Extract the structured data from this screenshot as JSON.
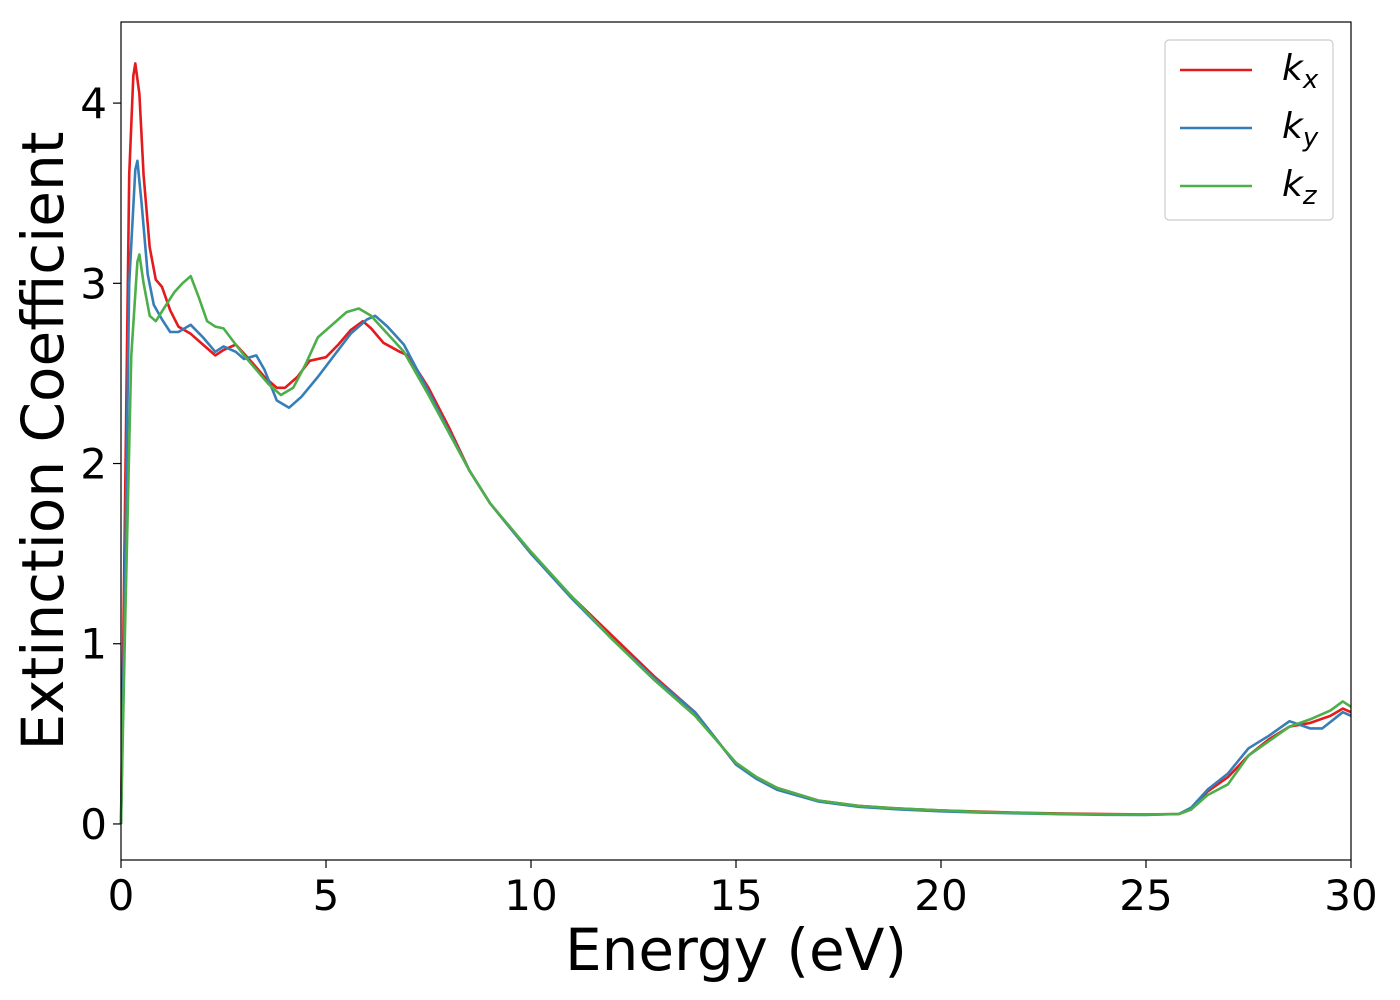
{
  "chart_data": {
    "type": "line",
    "xlabel": "Energy (eV)",
    "ylabel": "Extinction Coefficient",
    "xlim": [
      0,
      30
    ],
    "ylim": [
      -0.2,
      4.45
    ],
    "xticks": [
      0,
      5,
      10,
      15,
      20,
      25,
      30
    ],
    "xtick_labels": [
      "0",
      "5",
      "10",
      "15",
      "20",
      "25",
      "30"
    ],
    "yticks": [
      0,
      1,
      2,
      3,
      4
    ],
    "ytick_labels": [
      "0",
      "1",
      "2",
      "3",
      "4"
    ],
    "grid": false,
    "legend_position": "top-right",
    "series": [
      {
        "name": "k_x",
        "label_base": "k",
        "label_sub": "x",
        "color": "#e41a1c",
        "points": [
          [
            0,
            0.0
          ],
          [
            0.1,
            1.8
          ],
          [
            0.2,
            3.6
          ],
          [
            0.3,
            4.15
          ],
          [
            0.35,
            4.22
          ],
          [
            0.45,
            4.05
          ],
          [
            0.55,
            3.6
          ],
          [
            0.7,
            3.2
          ],
          [
            0.85,
            3.02
          ],
          [
            1.0,
            2.98
          ],
          [
            1.2,
            2.85
          ],
          [
            1.4,
            2.76
          ],
          [
            1.7,
            2.72
          ],
          [
            2.0,
            2.66
          ],
          [
            2.3,
            2.6
          ],
          [
            2.5,
            2.63
          ],
          [
            2.8,
            2.66
          ],
          [
            3.2,
            2.56
          ],
          [
            3.5,
            2.48
          ],
          [
            3.8,
            2.42
          ],
          [
            4.0,
            2.42
          ],
          [
            4.3,
            2.48
          ],
          [
            4.6,
            2.57
          ],
          [
            5.0,
            2.59
          ],
          [
            5.3,
            2.66
          ],
          [
            5.6,
            2.74
          ],
          [
            5.9,
            2.79
          ],
          [
            6.1,
            2.75
          ],
          [
            6.4,
            2.67
          ],
          [
            6.8,
            2.62
          ],
          [
            7.0,
            2.6
          ],
          [
            7.5,
            2.42
          ],
          [
            8.0,
            2.2
          ],
          [
            8.5,
            1.96
          ],
          [
            9.0,
            1.78
          ],
          [
            10.0,
            1.5
          ],
          [
            11.0,
            1.26
          ],
          [
            12.0,
            1.04
          ],
          [
            13.0,
            0.82
          ],
          [
            14.0,
            0.62
          ],
          [
            15.0,
            0.33
          ],
          [
            15.5,
            0.26
          ],
          [
            16.0,
            0.2
          ],
          [
            17.0,
            0.13
          ],
          [
            18.0,
            0.1
          ],
          [
            19.0,
            0.085
          ],
          [
            20.0,
            0.075
          ],
          [
            21.0,
            0.068
          ],
          [
            22.0,
            0.062
          ],
          [
            23.0,
            0.058
          ],
          [
            24.0,
            0.055
          ],
          [
            25.0,
            0.053
          ],
          [
            25.8,
            0.055
          ],
          [
            26.1,
            0.08
          ],
          [
            26.5,
            0.18
          ],
          [
            27.0,
            0.26
          ],
          [
            27.5,
            0.38
          ],
          [
            28.0,
            0.47
          ],
          [
            28.5,
            0.54
          ],
          [
            29.0,
            0.56
          ],
          [
            29.5,
            0.6
          ],
          [
            29.8,
            0.64
          ],
          [
            30.0,
            0.62
          ]
        ]
      },
      {
        "name": "k_y",
        "label_base": "k",
        "label_sub": "y",
        "color": "#377eb8",
        "points": [
          [
            0,
            0.0
          ],
          [
            0.1,
            1.4
          ],
          [
            0.2,
            3.0
          ],
          [
            0.35,
            3.63
          ],
          [
            0.4,
            3.68
          ],
          [
            0.5,
            3.45
          ],
          [
            0.65,
            3.05
          ],
          [
            0.8,
            2.88
          ],
          [
            1.0,
            2.8
          ],
          [
            1.2,
            2.73
          ],
          [
            1.4,
            2.73
          ],
          [
            1.7,
            2.77
          ],
          [
            2.0,
            2.7
          ],
          [
            2.3,
            2.62
          ],
          [
            2.5,
            2.65
          ],
          [
            2.8,
            2.62
          ],
          [
            3.0,
            2.58
          ],
          [
            3.3,
            2.6
          ],
          [
            3.5,
            2.52
          ],
          [
            3.8,
            2.35
          ],
          [
            4.1,
            2.31
          ],
          [
            4.4,
            2.37
          ],
          [
            4.8,
            2.48
          ],
          [
            5.2,
            2.6
          ],
          [
            5.6,
            2.72
          ],
          [
            6.0,
            2.8
          ],
          [
            6.2,
            2.82
          ],
          [
            6.5,
            2.76
          ],
          [
            6.9,
            2.66
          ],
          [
            7.5,
            2.4
          ],
          [
            8.0,
            2.18
          ],
          [
            8.5,
            1.96
          ],
          [
            9.0,
            1.78
          ],
          [
            10.0,
            1.5
          ],
          [
            11.0,
            1.25
          ],
          [
            12.0,
            1.02
          ],
          [
            13.0,
            0.81
          ],
          [
            14.0,
            0.62
          ],
          [
            15.0,
            0.33
          ],
          [
            15.5,
            0.25
          ],
          [
            16.0,
            0.19
          ],
          [
            17.0,
            0.125
          ],
          [
            18.0,
            0.095
          ],
          [
            19.0,
            0.08
          ],
          [
            20.0,
            0.07
          ],
          [
            21.0,
            0.063
          ],
          [
            22.0,
            0.058
          ],
          [
            23.0,
            0.054
          ],
          [
            24.0,
            0.051
          ],
          [
            25.0,
            0.05
          ],
          [
            25.8,
            0.055
          ],
          [
            26.1,
            0.09
          ],
          [
            26.5,
            0.19
          ],
          [
            27.0,
            0.28
          ],
          [
            27.5,
            0.42
          ],
          [
            28.0,
            0.49
          ],
          [
            28.5,
            0.57
          ],
          [
            29.0,
            0.53
          ],
          [
            29.3,
            0.53
          ],
          [
            29.8,
            0.62
          ],
          [
            30.0,
            0.6
          ]
        ]
      },
      {
        "name": "k_z",
        "label_base": "k",
        "label_sub": "z",
        "color": "#4daf4a",
        "points": [
          [
            0,
            0.0
          ],
          [
            0.1,
            1.1
          ],
          [
            0.25,
            2.6
          ],
          [
            0.4,
            3.12
          ],
          [
            0.45,
            3.16
          ],
          [
            0.55,
            3.0
          ],
          [
            0.7,
            2.82
          ],
          [
            0.85,
            2.79
          ],
          [
            1.1,
            2.88
          ],
          [
            1.3,
            2.95
          ],
          [
            1.5,
            3.0
          ],
          [
            1.7,
            3.04
          ],
          [
            1.9,
            2.92
          ],
          [
            2.1,
            2.79
          ],
          [
            2.3,
            2.76
          ],
          [
            2.5,
            2.75
          ],
          [
            2.8,
            2.66
          ],
          [
            3.0,
            2.6
          ],
          [
            3.3,
            2.52
          ],
          [
            3.6,
            2.44
          ],
          [
            3.9,
            2.38
          ],
          [
            4.2,
            2.42
          ],
          [
            4.5,
            2.55
          ],
          [
            4.8,
            2.7
          ],
          [
            5.2,
            2.78
          ],
          [
            5.5,
            2.84
          ],
          [
            5.8,
            2.86
          ],
          [
            6.1,
            2.82
          ],
          [
            6.5,
            2.72
          ],
          [
            6.9,
            2.62
          ],
          [
            7.5,
            2.38
          ],
          [
            8.0,
            2.17
          ],
          [
            8.5,
            1.96
          ],
          [
            9.0,
            1.78
          ],
          [
            10.0,
            1.51
          ],
          [
            11.0,
            1.26
          ],
          [
            12.0,
            1.02
          ],
          [
            13.0,
            0.8
          ],
          [
            14.0,
            0.6
          ],
          [
            15.0,
            0.34
          ],
          [
            15.5,
            0.26
          ],
          [
            16.0,
            0.2
          ],
          [
            17.0,
            0.13
          ],
          [
            18.0,
            0.1
          ],
          [
            19.0,
            0.085
          ],
          [
            20.0,
            0.075
          ],
          [
            21.0,
            0.066
          ],
          [
            22.0,
            0.06
          ],
          [
            23.0,
            0.056
          ],
          [
            24.0,
            0.053
          ],
          [
            25.0,
            0.052
          ],
          [
            25.8,
            0.055
          ],
          [
            26.1,
            0.08
          ],
          [
            26.5,
            0.16
          ],
          [
            27.0,
            0.22
          ],
          [
            27.5,
            0.38
          ],
          [
            28.0,
            0.46
          ],
          [
            28.5,
            0.54
          ],
          [
            29.0,
            0.58
          ],
          [
            29.5,
            0.63
          ],
          [
            29.8,
            0.68
          ],
          [
            30.0,
            0.65
          ]
        ]
      }
    ]
  }
}
